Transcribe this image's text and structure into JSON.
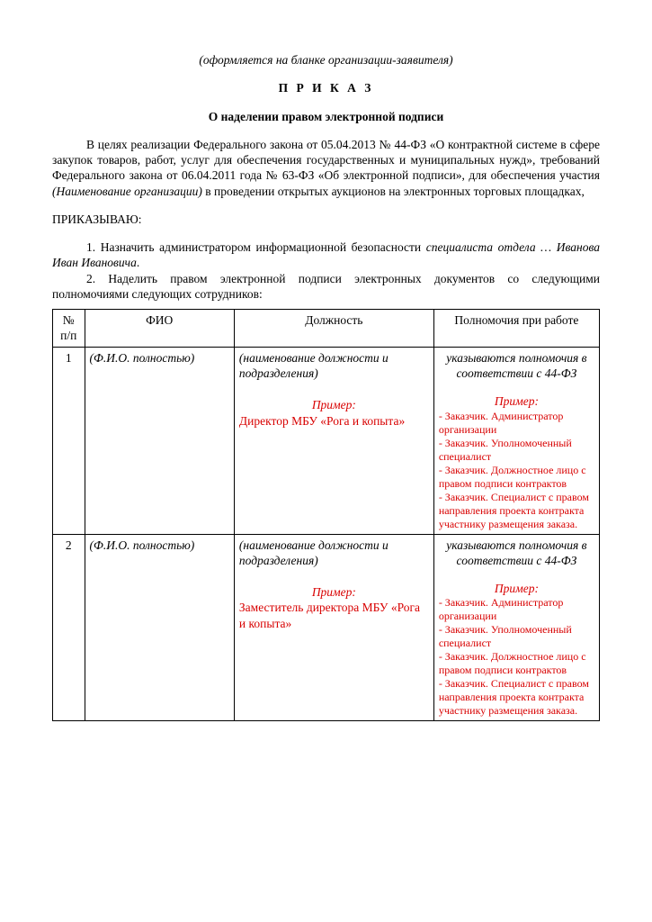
{
  "header_note": "(оформляется на бланке организации-заявителя)",
  "title_main": "П Р И К А З",
  "title_sub": "О наделении правом электронной подписи",
  "preamble_p1": "В целях реализации Федерального закона от 05.04.2013 № 44-ФЗ «О контрактной системе в сфере закупок товаров, работ, услуг для обеспечения государственных и муниципальных нужд», требований Федерального закона от 06.04.2011 года № 63-ФЗ «Об электронной подписи», для обеспечения участия ",
  "preamble_org_placeholder": "(Наименование организации)",
  "preamble_p2": " в проведении открытых аукционов на электронных торговых площадках,",
  "order_token": "ПРИКАЗЫВАЮ:",
  "item1_a": "1. Назначить администратором информационной безопасности ",
  "item1_b": "специалиста отдела … Иванова Иван Ивановича",
  "item1_c": ".",
  "item2": "2. Наделить правом электронной подписи электронных документов со следующими полномочиями следующих сотрудников:",
  "table": {
    "columns": {
      "n": "№ п/п",
      "fio": "ФИО",
      "position": "Должность",
      "authority": "Полномочия при работе"
    },
    "rows": [
      {
        "n": "1",
        "fio_placeholder": "(Ф.И.О. полностью)",
        "position_placeholder": "(наименование должности и подразделения)",
        "example_label": "Пример:",
        "position_example": "Директор МБУ «Рога и копыта»",
        "authority_placeholder": "указываются полномочия в соответствии с 44-ФЗ",
        "authority_examples": [
          "- Заказчик. Администратор организации",
          "- Заказчик. Уполномоченный специалист",
          "- Заказчик. Должностное лицо с правом подписи контрактов",
          "- Заказчик. Специалист с правом направления проекта контракта участнику размещения заказа."
        ]
      },
      {
        "n": "2",
        "fio_placeholder": "(Ф.И.О. полностью)",
        "position_placeholder": "(наименование должности и подразделения)",
        "example_label": "Пример:",
        "position_example": "Заместитель директора МБУ «Рога и копыта»",
        "authority_placeholder": "указываются полномочия в соответствии с 44-ФЗ",
        "authority_examples": [
          "- Заказчик. Администратор организации",
          "- Заказчик. Уполномоченный специалист",
          "- Заказчик. Должностное лицо с правом подписи контрактов",
          "- Заказчик. Специалист с правом направления проекта контракта участнику размещения заказа."
        ]
      }
    ]
  }
}
